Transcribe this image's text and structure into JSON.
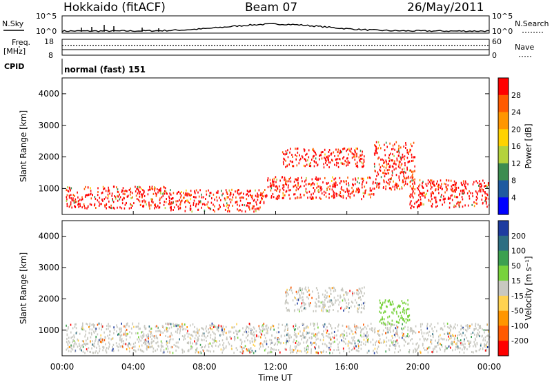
{
  "header": {
    "station": "Hokkaido (fitACF)",
    "beam": "Beam 07",
    "date": "26/May/2011"
  },
  "top_panels": {
    "nsky_label": "N.Sky",
    "nsearch_label": "N.Search",
    "nsky_ticks": [
      "10^5",
      "10^0"
    ],
    "nsearch_ticks": [
      "10^5",
      "10^0"
    ],
    "freq_label_1": "Freq.",
    "freq_label_2": "[MHz]",
    "freq_ticks": [
      "18",
      "8"
    ],
    "nave_label": "Nave",
    "nave_ticks": [
      "60",
      "0"
    ],
    "cpid_label": "CPID",
    "cpid_value": "normal (fast) 151"
  },
  "chart_data": [
    {
      "type": "heatmap",
      "name": "power",
      "ylabel": "Slant Range [km]",
      "xlabel": "",
      "x_ticks": [
        "00:00",
        "04:00",
        "08:00",
        "12:00",
        "16:00",
        "20:00",
        "00:00"
      ],
      "y_ticks": [
        1000,
        2000,
        3000,
        4000
      ],
      "ylim": [
        180,
        4500
      ],
      "colorbar_label": "Power [dB]",
      "colorbar_ticks": [
        28,
        24,
        20,
        16,
        12,
        8,
        4
      ],
      "colorbar_colors": [
        "#ff0000",
        "#ff5a00",
        "#ff9600",
        "#ffd200",
        "#b4d23c",
        "#3c8c50",
        "#1e5aa0",
        "#0000ff"
      ],
      "regions": [
        {
          "t": [
            0.2,
            6.0
          ],
          "r": [
            400,
            1100
          ],
          "v": 26
        },
        {
          "t": [
            6.0,
            11.5
          ],
          "r": [
            300,
            1000
          ],
          "v": 28
        },
        {
          "t": [
            11.5,
            17.5
          ],
          "r": [
            700,
            1400
          ],
          "v": 24
        },
        {
          "t": [
            12.3,
            17.0
          ],
          "r": [
            1700,
            2300
          ],
          "v": 22
        },
        {
          "t": [
            17.5,
            19.8
          ],
          "r": [
            1000,
            2500
          ],
          "v": 22
        },
        {
          "t": [
            19.5,
            24.0
          ],
          "r": [
            400,
            1300
          ],
          "v": 26
        }
      ]
    },
    {
      "type": "heatmap",
      "name": "velocity",
      "ylabel": "Slant Range [km]",
      "xlabel": "Time UT",
      "x_ticks": [
        "00:00",
        "04:00",
        "08:00",
        "12:00",
        "16:00",
        "20:00",
        "00:00"
      ],
      "y_ticks": [
        1000,
        2000,
        3000,
        4000
      ],
      "ylim": [
        180,
        4500
      ],
      "colorbar_label": "Velocity [m s⁻¹]",
      "colorbar_ticks": [
        200,
        100,
        50,
        15,
        -15,
        -50,
        -100,
        -200
      ],
      "colorbar_colors": [
        "#1e3ca0",
        "#2d6e82",
        "#3ca050",
        "#78d23c",
        "#c8c8c0",
        "#ffd250",
        "#ff9600",
        "#ff5a00",
        "#ff0000"
      ],
      "regions": [
        {
          "t": [
            0.2,
            24.0
          ],
          "r": [
            300,
            1250
          ],
          "v": 0
        },
        {
          "t": [
            12.5,
            17.0
          ],
          "r": [
            1600,
            2400
          ],
          "v": 0
        },
        {
          "t": [
            17.8,
            19.5
          ],
          "r": [
            1200,
            2000
          ],
          "v": 30
        }
      ]
    }
  ]
}
